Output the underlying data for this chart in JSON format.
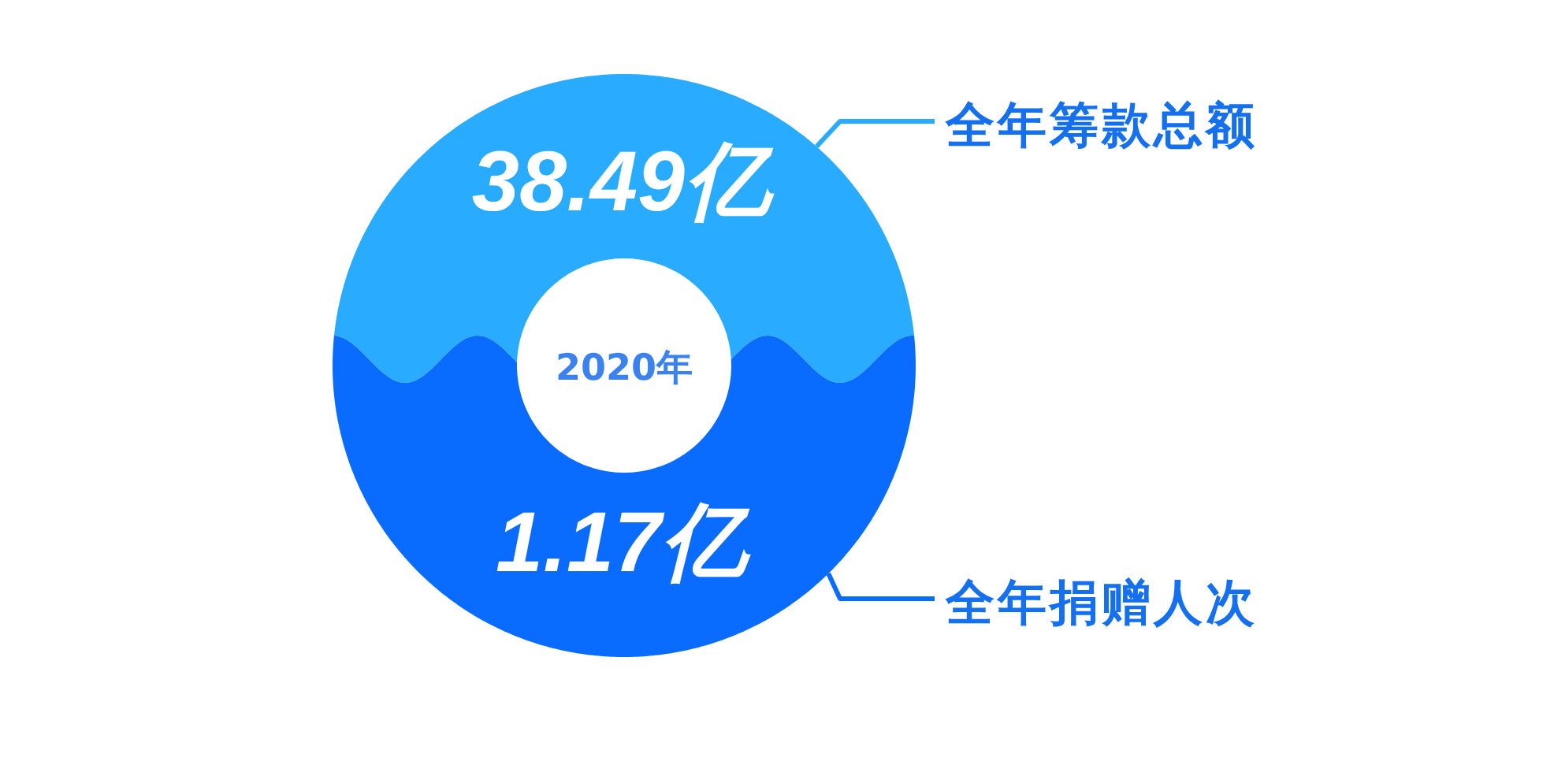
{
  "chart_data": {
    "type": "other",
    "title": "2020年",
    "categories": [
      "全年筹款总额",
      "全年捐赠人次"
    ],
    "values": [
      38.49,
      1.17
    ],
    "value_labels": [
      "38.49亿",
      "1.17亿"
    ],
    "colors": [
      "#29abff",
      "#0a6cff"
    ]
  }
}
